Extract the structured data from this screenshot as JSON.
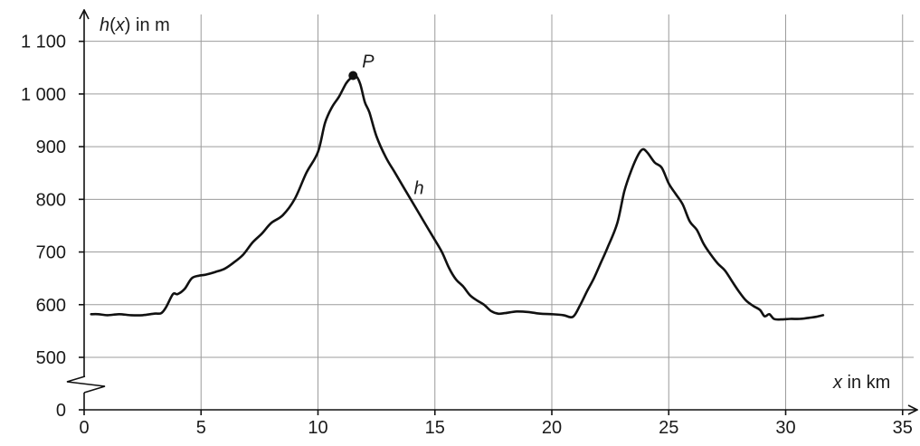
{
  "chart_data": {
    "type": "line",
    "xlabel_var": "x",
    "xlabel_unit": " in km",
    "ylabel_func": "h",
    "ylabel_var": "x",
    "ylabel_unit": " in m",
    "xlim": [
      0,
      35
    ],
    "ylim": [
      0,
      1100
    ],
    "y_axis_break": [
      0,
      500
    ],
    "grid": true,
    "x_ticks": [
      0,
      5,
      10,
      15,
      20,
      25,
      30,
      35
    ],
    "x_tick_labels": [
      "0",
      "5",
      "10",
      "15",
      "20",
      "25",
      "30",
      "35"
    ],
    "y_ticks": [
      0,
      500,
      600,
      700,
      800,
      900,
      1000,
      1100
    ],
    "y_tick_labels": [
      "0",
      "500",
      "600",
      "700",
      "800",
      "900",
      "1 000",
      "1 100"
    ],
    "series": [
      {
        "name": "h",
        "color": "#111111",
        "x": [
          0.3,
          0.6,
          1.0,
          1.5,
          2.0,
          2.5,
          3.0,
          3.3,
          3.5,
          3.8,
          4.0,
          4.3,
          4.6,
          4.9,
          5.2,
          5.6,
          6.0,
          6.4,
          6.8,
          7.2,
          7.6,
          8.0,
          8.5,
          9.0,
          9.5,
          10.0,
          10.3,
          10.6,
          10.9,
          11.2,
          11.4,
          11.6,
          11.8,
          12.0,
          12.2,
          12.5,
          12.9,
          13.3,
          13.7,
          14.1,
          14.5,
          14.9,
          15.3,
          15.6,
          15.9,
          16.2,
          16.5,
          16.8,
          17.1,
          17.4,
          17.7,
          18.0,
          18.5,
          19.0,
          19.5,
          20.0,
          20.5,
          20.9,
          21.2,
          21.5,
          21.8,
          22.1,
          22.4,
          22.8,
          23.1,
          23.4,
          23.7,
          23.9,
          24.1,
          24.4,
          24.7,
          25.0,
          25.3,
          25.6,
          25.9,
          26.2,
          26.5,
          26.8,
          27.1,
          27.4,
          27.7,
          28.0,
          28.3,
          28.6,
          28.9,
          29.1,
          29.3,
          29.5,
          29.8,
          30.2,
          30.6,
          31.0,
          31.3,
          31.6
        ],
        "values": [
          582,
          582,
          580,
          582,
          580,
          580,
          583,
          584,
          595,
          620,
          620,
          630,
          650,
          655,
          657,
          662,
          668,
          680,
          695,
          718,
          735,
          755,
          770,
          800,
          850,
          890,
          945,
          975,
          995,
          1020,
          1030,
          1035,
          1020,
          985,
          965,
          920,
          880,
          850,
          820,
          790,
          760,
          730,
          700,
          670,
          648,
          635,
          618,
          608,
          600,
          588,
          583,
          584,
          587,
          586,
          583,
          582,
          580,
          577,
          598,
          625,
          650,
          680,
          710,
          755,
          815,
          855,
          885,
          895,
          888,
          870,
          860,
          830,
          810,
          790,
          758,
          742,
          715,
          695,
          678,
          665,
          645,
          625,
          608,
          598,
          590,
          578,
          582,
          573,
          572,
          573,
          573,
          575,
          577,
          580
        ]
      }
    ],
    "annotations": [
      {
        "type": "point",
        "label": "P",
        "x": 11.5,
        "y": 1035
      },
      {
        "type": "text",
        "label": "h",
        "x": 14.1,
        "y": 810
      }
    ]
  }
}
